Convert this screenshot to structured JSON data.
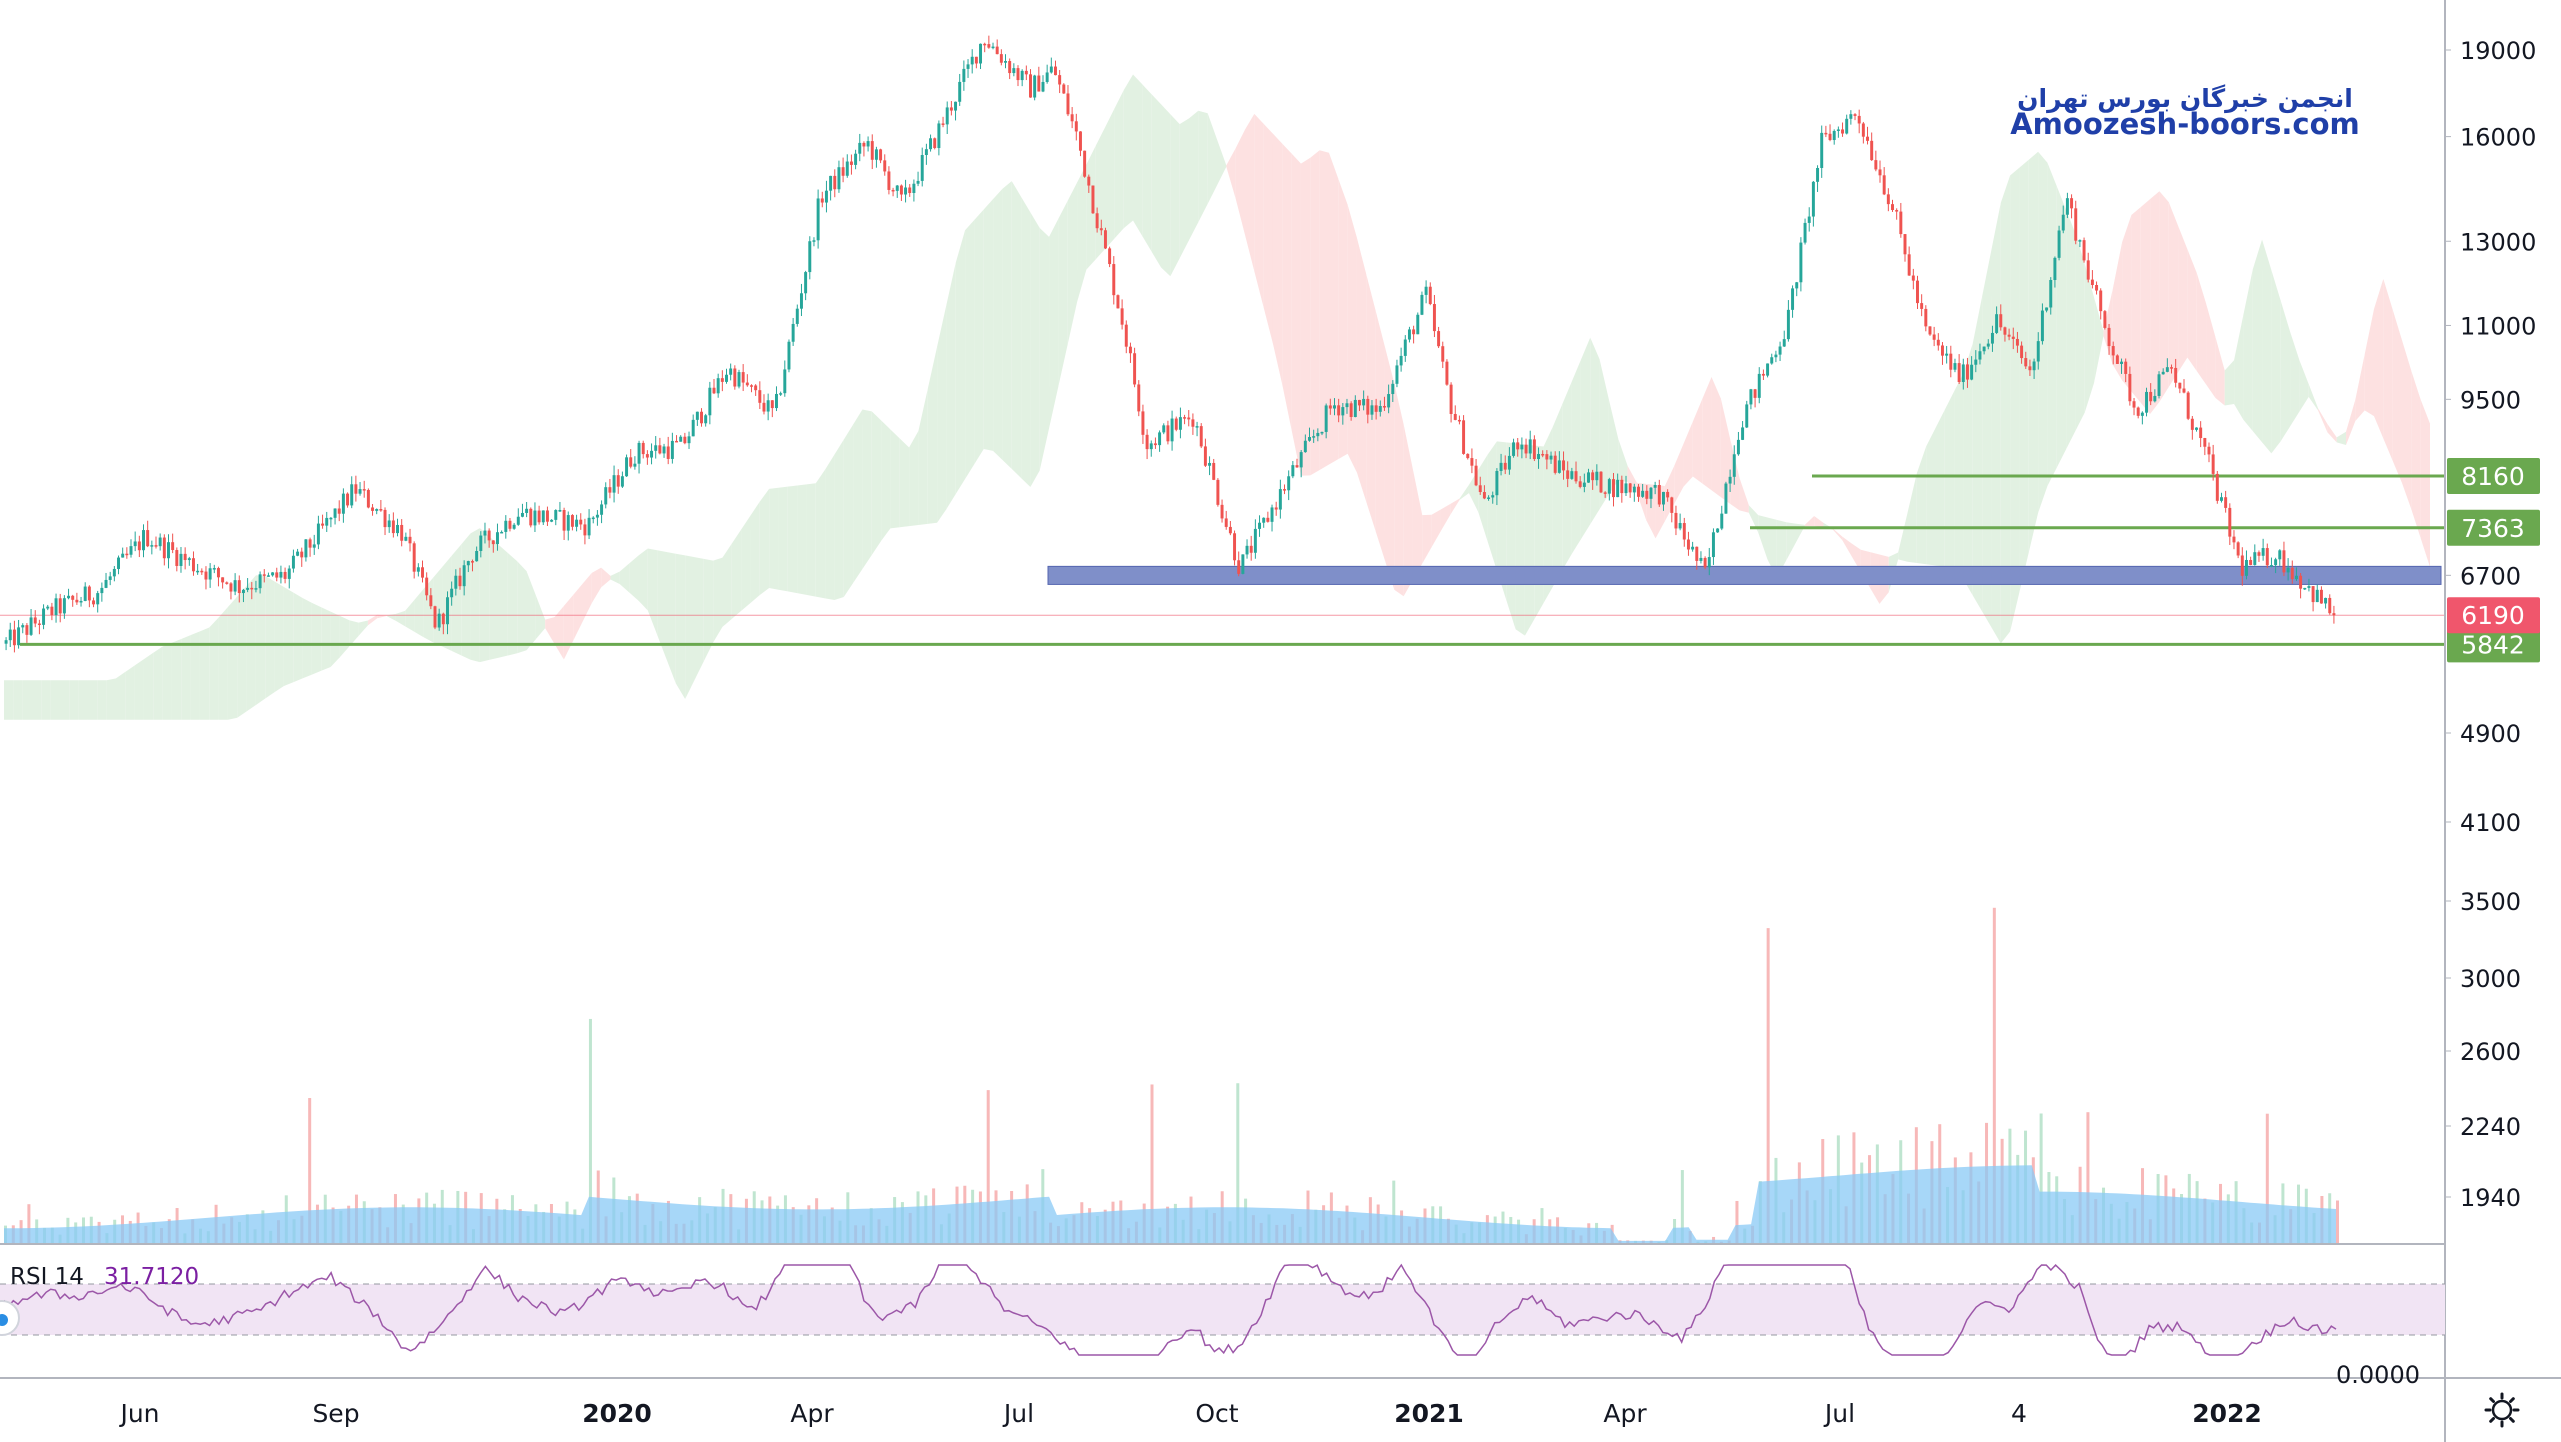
{
  "watermark": {
    "line1": "انجمن خبرگان بورس تهران",
    "line2": "Amoozesh-boors.com",
    "color": "#1f3fa8"
  },
  "colors": {
    "up": "#26a69a",
    "down": "#ef5350",
    "cloud_up": "#e2f1e2",
    "cloud_down": "#fde1e1",
    "support_band": "#7f8fc9",
    "level_line": "#6aa84f",
    "last_price": "#f0566c",
    "volume_ma": "#89c9f5",
    "rsi_line": "#9c57a8",
    "rsi_band": "#f1e4f4"
  },
  "indicators": {
    "rsi_label": "RSI 14",
    "rsi_value": "31.7120"
  },
  "chart_data": {
    "type": "candlestick",
    "price_scale": "log",
    "y_ticks": [
      "19000",
      "16000",
      "13000",
      "11000",
      "9500",
      "6700",
      "4900",
      "4100",
      "3500",
      "3000",
      "2600",
      "2240",
      "1940"
    ],
    "x_ticks": [
      {
        "label": "Jun",
        "bold": false
      },
      {
        "label": "Sep",
        "bold": false
      },
      {
        "label": "2020",
        "bold": true
      },
      {
        "label": "Apr",
        "bold": false
      },
      {
        "label": "Jul",
        "bold": false
      },
      {
        "label": "Oct",
        "bold": false
      },
      {
        "label": "2021",
        "bold": true
      },
      {
        "label": "Apr",
        "bold": false
      },
      {
        "label": "Jul",
        "bold": false
      },
      {
        "label": "4",
        "bold": false
      },
      {
        "label": "2022",
        "bold": true
      }
    ],
    "horizontal_levels": [
      {
        "value": 8160,
        "label": "8160",
        "color": "#6aa84f"
      },
      {
        "value": 7363,
        "label": "7363",
        "color": "#6aa84f"
      },
      {
        "value": 5842,
        "label": "5842",
        "color": "#6aa84f"
      }
    ],
    "last_price": {
      "value": 6190,
      "label": "6190"
    },
    "support_zone": {
      "low": 6580,
      "high": 6820
    },
    "price_path": [
      {
        "t": 0.0,
        "v": 5850
      },
      {
        "t": 0.02,
        "v": 6250
      },
      {
        "t": 0.04,
        "v": 6500
      },
      {
        "t": 0.06,
        "v": 7250
      },
      {
        "t": 0.08,
        "v": 6850
      },
      {
        "t": 0.1,
        "v": 6550
      },
      {
        "t": 0.12,
        "v": 6700
      },
      {
        "t": 0.15,
        "v": 7950
      },
      {
        "t": 0.17,
        "v": 7300
      },
      {
        "t": 0.185,
        "v": 6050
      },
      {
        "t": 0.2,
        "v": 7000
      },
      {
        "t": 0.22,
        "v": 7600
      },
      {
        "t": 0.25,
        "v": 7400
      },
      {
        "t": 0.27,
        "v": 8550
      },
      {
        "t": 0.29,
        "v": 8650
      },
      {
        "t": 0.31,
        "v": 10100
      },
      {
        "t": 0.33,
        "v": 9200
      },
      {
        "t": 0.35,
        "v": 14200
      },
      {
        "t": 0.37,
        "v": 15800
      },
      {
        "t": 0.385,
        "v": 14000
      },
      {
        "t": 0.4,
        "v": 16100
      },
      {
        "t": 0.42,
        "v": 19500
      },
      {
        "t": 0.44,
        "v": 17600
      },
      {
        "t": 0.45,
        "v": 18300
      },
      {
        "t": 0.46,
        "v": 16000
      },
      {
        "t": 0.48,
        "v": 11000
      },
      {
        "t": 0.49,
        "v": 8700
      },
      {
        "t": 0.51,
        "v": 9200
      },
      {
        "t": 0.53,
        "v": 6800
      },
      {
        "t": 0.55,
        "v": 8050
      },
      {
        "t": 0.57,
        "v": 9400
      },
      {
        "t": 0.59,
        "v": 9300
      },
      {
        "t": 0.61,
        "v": 11700
      },
      {
        "t": 0.62,
        "v": 9500
      },
      {
        "t": 0.635,
        "v": 7700
      },
      {
        "t": 0.65,
        "v": 8800
      },
      {
        "t": 0.67,
        "v": 8200
      },
      {
        "t": 0.69,
        "v": 8000
      },
      {
        "t": 0.71,
        "v": 7900
      },
      {
        "t": 0.73,
        "v": 6700
      },
      {
        "t": 0.745,
        "v": 9100
      },
      {
        "t": 0.765,
        "v": 11000
      },
      {
        "t": 0.78,
        "v": 15800
      },
      {
        "t": 0.795,
        "v": 16800
      },
      {
        "t": 0.81,
        "v": 14000
      },
      {
        "t": 0.825,
        "v": 10800
      },
      {
        "t": 0.84,
        "v": 9900
      },
      {
        "t": 0.855,
        "v": 11100
      },
      {
        "t": 0.87,
        "v": 10000
      },
      {
        "t": 0.885,
        "v": 14200
      },
      {
        "t": 0.9,
        "v": 11200
      },
      {
        "t": 0.915,
        "v": 9300
      },
      {
        "t": 0.93,
        "v": 10100
      },
      {
        "t": 0.945,
        "v": 8500
      },
      {
        "t": 0.96,
        "v": 6800
      },
      {
        "t": 0.975,
        "v": 7000
      },
      {
        "t": 1.0,
        "v": 6190
      }
    ]
  }
}
